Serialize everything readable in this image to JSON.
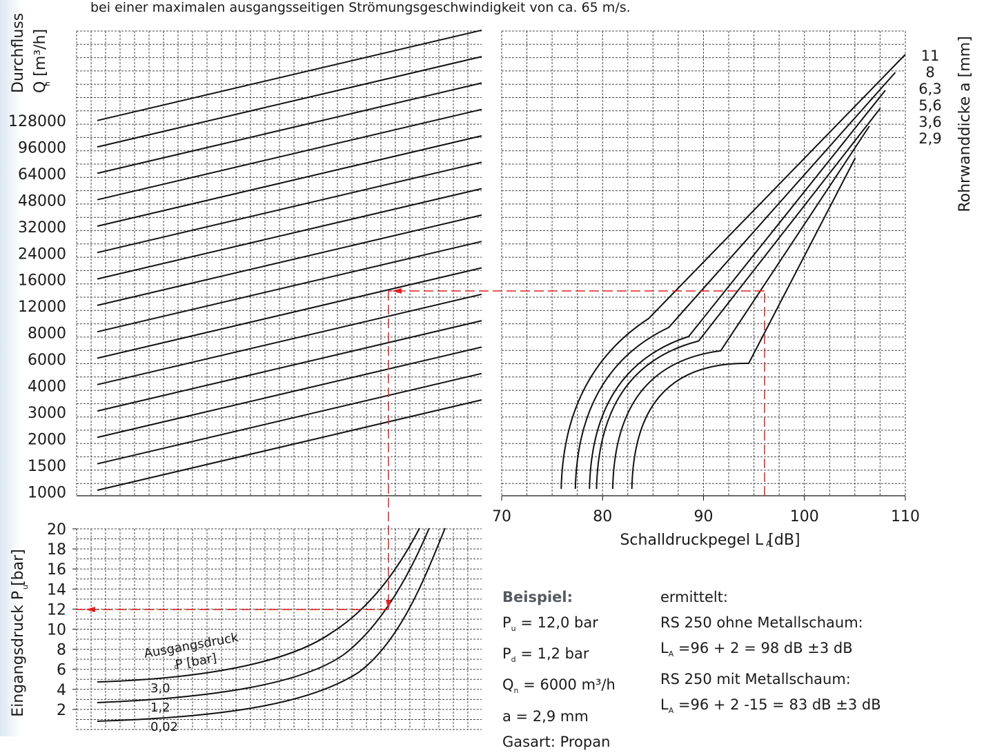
{
  "caption": "bei einer maximalen ausgangsseitigen Strömungsgeschwindigkeit von ca. 65 m/s.",
  "chart_data": [
    {
      "panel": "durchfluss",
      "type": "line",
      "ylabel_main": "Durchfluss",
      "ylabel_sym": "Q",
      "ylabel_sub": "n",
      "ylabel_unit": "[m³/h]",
      "y_ticks": [
        "128000",
        "96000",
        "64000",
        "48000",
        "32000",
        "24000",
        "16000",
        "12000",
        "8000",
        "6000",
        "4000",
        "3000",
        "2000",
        "1500",
        "1000"
      ],
      "y_categorical": [
        128000,
        96000,
        64000,
        48000,
        32000,
        24000,
        16000,
        12000,
        8000,
        6000,
        4000,
        3000,
        2000,
        1500,
        1000
      ],
      "n_lines": 15,
      "grid": true,
      "note": "family of parallel straight lines rising left to right; lower-left line starts at 1000"
    },
    {
      "panel": "schalldruckpegel",
      "type": "line",
      "xlabel": "Schalldruckpegel L",
      "xlabel_sub": "A",
      "xlabel_unit": "[dB]",
      "x_ticks": [
        "70",
        "80",
        "90",
        "100",
        "110"
      ],
      "xlim": [
        70,
        110
      ],
      "ylabel": "Rohrwanddicke a [mm]",
      "grid": true,
      "series": [
        {
          "name": "11",
          "start_x": 75.9,
          "y_scale_values": [
            1000,
            128000
          ]
        },
        {
          "name": "8",
          "start_x": 77.3,
          "y_scale_values": [
            1000,
            128000
          ]
        },
        {
          "name": "6,3",
          "start_x": 78.7,
          "y_scale_values": [
            1000,
            128000
          ]
        },
        {
          "name": "5,6",
          "start_x": 79.4,
          "y_scale_values": [
            1000,
            128000
          ]
        },
        {
          "name": "3,6",
          "start_x": 81.0,
          "y_scale_values": [
            1000,
            128000
          ]
        },
        {
          "name": "2,9",
          "start_x": 82.9,
          "y_scale_values": [
            1000,
            128000
          ]
        }
      ],
      "example_reading_x": 96
    },
    {
      "panel": "eingangsdruck",
      "type": "line",
      "ylabel_main": "Eingangsdruck P",
      "ylabel_sub": "u",
      "ylabel_unit": "[bar]",
      "y_ticks": [
        "20",
        "18",
        "16",
        "14",
        "12",
        "10",
        "8",
        "6",
        "4",
        "2"
      ],
      "ylim": [
        0,
        20
      ],
      "legend_title": "Ausgangsdruck",
      "legend_sym": "P",
      "legend_sub": "d",
      "legend_unit": "[bar]",
      "series": [
        {
          "name": "3,0",
          "start_y": 4.8
        },
        {
          "name": "1,2",
          "start_y": 2.8
        },
        {
          "name": "0,02",
          "start_y": 1.0
        }
      ],
      "example_reading_y": 12,
      "grid": true
    }
  ],
  "example": {
    "heading": "Beispiel:",
    "lines": [
      {
        "sym": "P",
        "sub": "u",
        "rest": " = 12,0 bar"
      },
      {
        "sym": "P",
        "sub": "d",
        "rest": " =   1,2 bar"
      },
      {
        "sym": "Q",
        "sub": "n",
        "rest": " = 6000 m³/h"
      },
      {
        "sym": "a",
        "sub": "",
        "rest": "   =   2,9 mm"
      },
      {
        "sym": "Gasart: Propan",
        "sub": "",
        "rest": ""
      }
    ],
    "result_heading": "ermittelt:",
    "results": [
      {
        "type": "text",
        "text": "RS 250 ohne Metallschaum:"
      },
      {
        "type": "la",
        "sym": "L",
        "sub": "A",
        "rest": " =96 + 2 = 98 dB ±3 dB"
      },
      {
        "type": "text",
        "text": "RS 250 mit Metallschaum:"
      },
      {
        "type": "la",
        "sym": "L",
        "sub": "A",
        "rest": " =96 + 2 -15 = 83 dB ±3 dB"
      }
    ]
  },
  "colors": {
    "line": "#111111",
    "grid": "#444444",
    "example_marker": "#e02020",
    "heading": "#555a60"
  }
}
